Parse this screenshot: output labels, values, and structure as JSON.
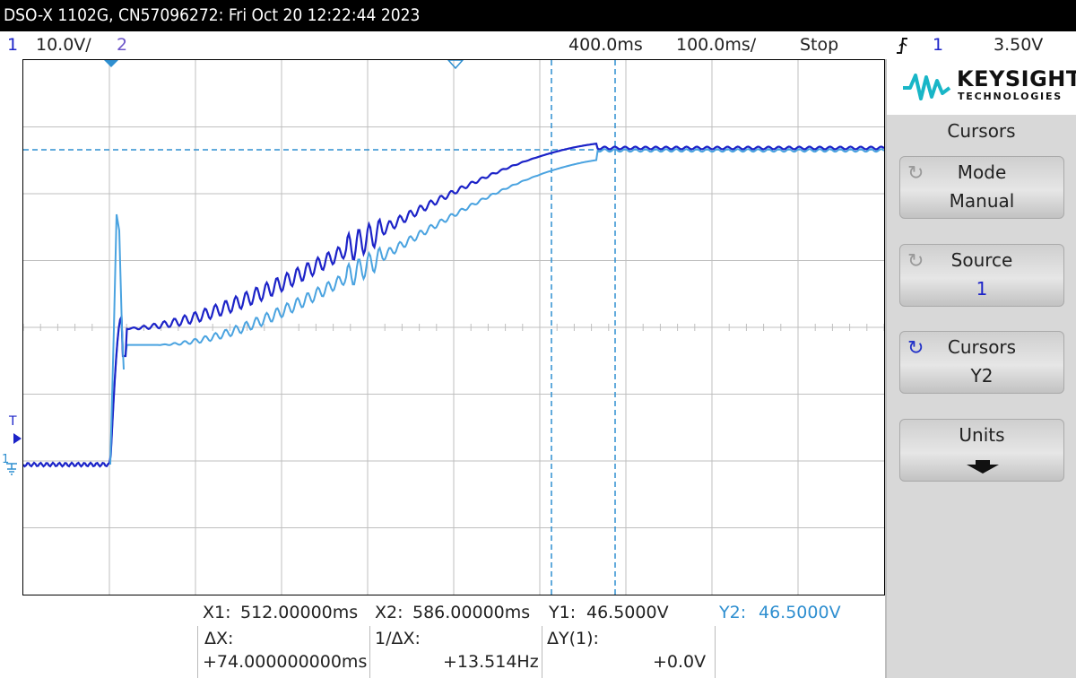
{
  "title": "DSO-X 1102G, CN57096272: Fri Oct 20 12:22:44 2023",
  "status": {
    "ch1_num": "1",
    "ch1_scale": "10.0V/",
    "ch2_num": "2",
    "time_offset": "400.0ms",
    "time_scale": "100.0ms/",
    "run_state": "Stop",
    "trigger_icon": "trigger-edge-icon",
    "trigger_source": "1",
    "trigger_level": "3.50V"
  },
  "scope": {
    "trigger_marker": "T",
    "ground_marker": "1"
  },
  "brand": {
    "name": "KEYSIGHT",
    "sub": "TECHNOLOGIES"
  },
  "menu": {
    "title": "Cursors",
    "softkeys": [
      {
        "label": "Mode",
        "value": "Manual"
      },
      {
        "label": "Source",
        "value": "1"
      },
      {
        "label": "Cursors",
        "value": "Y2"
      },
      {
        "label": "Units",
        "value": ""
      }
    ]
  },
  "cursor_info": {
    "x1_label": "X1:",
    "x1_value": "512.00000ms",
    "x2_label": "X2:",
    "x2_value": "586.00000ms",
    "y1_label": "Y1:",
    "y1_value": "46.5000V",
    "y2_label": "Y2:",
    "y2_value": "46.5000V",
    "dx_label": "ΔX:",
    "dx_value": "+74.000000000ms",
    "inv_dx_label": "1/ΔX:",
    "inv_dx_value": "+13.514Hz",
    "dy_label": "ΔY(1):",
    "dy_value": "+0.0V"
  },
  "colors": {
    "ch1": "#1c23c8",
    "ch2": "#4aa3e0",
    "cursor": "#2f8fd0",
    "grid": "#bfbfbf"
  }
}
